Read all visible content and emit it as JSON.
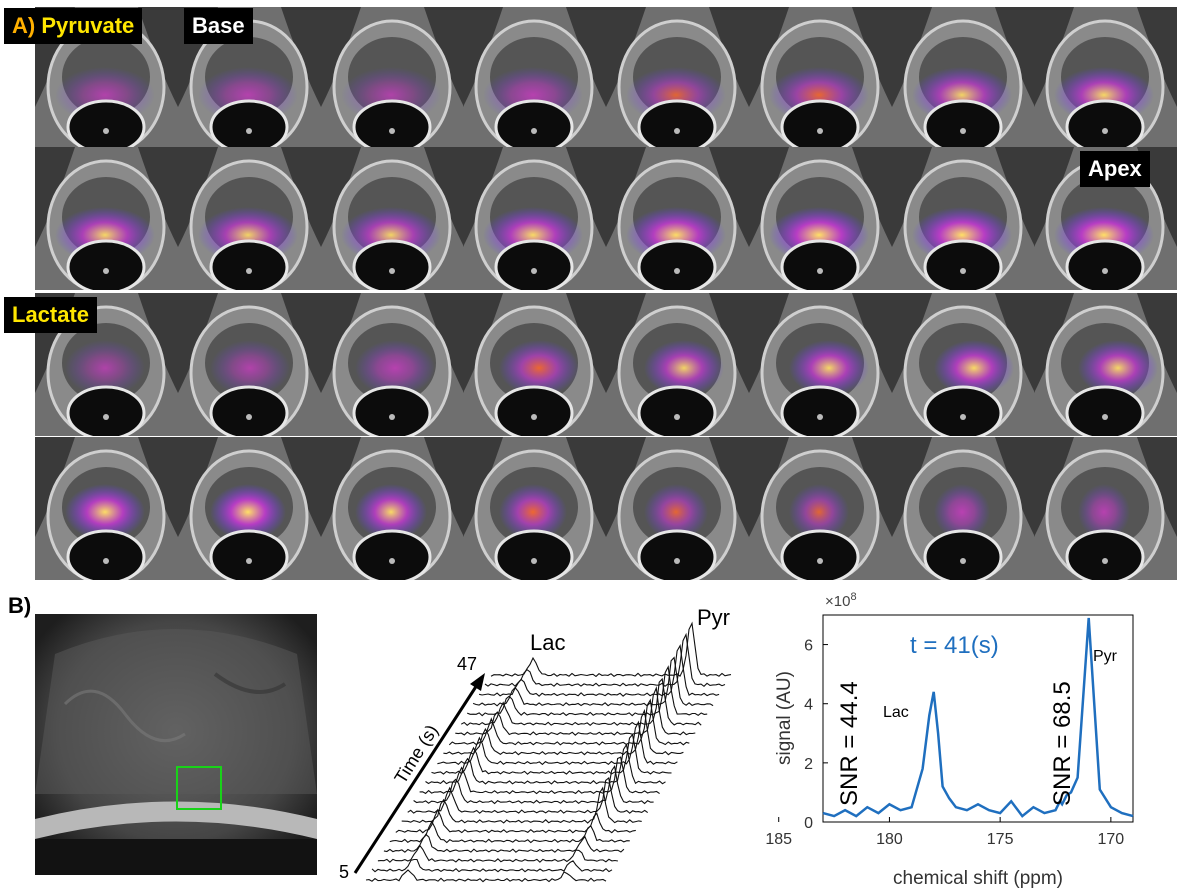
{
  "panel_a": {
    "panel_label": "A)",
    "pyruvate_label": "Pyruvate",
    "base_label": "Base",
    "apex_label": "Apex",
    "lactate_label": "Lactate",
    "colors": {
      "label_text": "#ffe600",
      "panel_letter": "#ffb000",
      "label_bg": "#000000"
    },
    "pyruvate_intensity": [
      [
        0.35,
        0.4,
        0.3,
        0.45,
        0.55,
        0.65,
        0.8,
        0.85
      ],
      [
        0.85,
        0.8,
        0.8,
        0.9,
        0.95,
        1.0,
        1.0,
        1.0
      ]
    ],
    "lactate_intensity": [
      [
        0.3,
        0.35,
        0.45,
        0.7,
        0.8,
        0.85,
        0.9,
        0.85
      ],
      [
        0.95,
        1.0,
        0.9,
        0.75,
        0.6,
        0.55,
        0.5,
        0.45
      ]
    ]
  },
  "panel_b": {
    "panel_label": "B)",
    "roi_color": "#19d219",
    "stack": {
      "lac_label": "Lac",
      "pyr_label": "Pyr",
      "time_axis_label": "Time (s)",
      "time_start": "5",
      "time_end": "47"
    },
    "spectrum": {
      "multiplier_label": "×10",
      "multiplier_exponent": "8",
      "time_annotation": "t = 41(s)",
      "lac_snr": "SNR = 44.4",
      "pyr_snr": "SNR = 68.5",
      "lac_peak_label": "Lac",
      "pyr_peak_label": "Pyr"
    }
  },
  "chart_data": {
    "type": "line",
    "title": "t = 41(s)",
    "xlabel": "chemical shift (ppm)",
    "ylabel": "signal (AU)",
    "xlim": [
      183,
      169
    ],
    "ylim": [
      0,
      7
    ],
    "x_reversed": true,
    "y_scale_label": "×10^8",
    "xticks": [
      185,
      180,
      175,
      170
    ],
    "yticks": [
      0,
      2,
      4,
      6
    ],
    "series": [
      {
        "color": "#1f6fbf",
        "x": [
          183.0,
          182.5,
          182.0,
          181.5,
          181.0,
          180.5,
          180.0,
          179.5,
          179.0,
          178.5,
          178.2,
          178.0,
          177.8,
          177.6,
          177.3,
          177.0,
          176.5,
          176.0,
          175.5,
          175.0,
          174.5,
          174.0,
          173.5,
          173.0,
          172.5,
          172.3,
          172.2,
          172.0,
          171.8,
          171.5,
          171.0,
          170.5,
          170.0,
          169.5,
          169.0
        ],
        "values": [
          0.3,
          0.2,
          0.4,
          0.2,
          0.5,
          0.3,
          0.6,
          0.4,
          0.5,
          1.8,
          3.6,
          4.4,
          3.0,
          1.2,
          0.8,
          0.5,
          0.4,
          0.6,
          0.4,
          0.3,
          0.7,
          0.2,
          0.5,
          0.3,
          0.4,
          0.7,
          0.6,
          0.9,
          1.0,
          1.5,
          6.9,
          1.1,
          0.5,
          0.3,
          0.2
        ]
      }
    ]
  }
}
